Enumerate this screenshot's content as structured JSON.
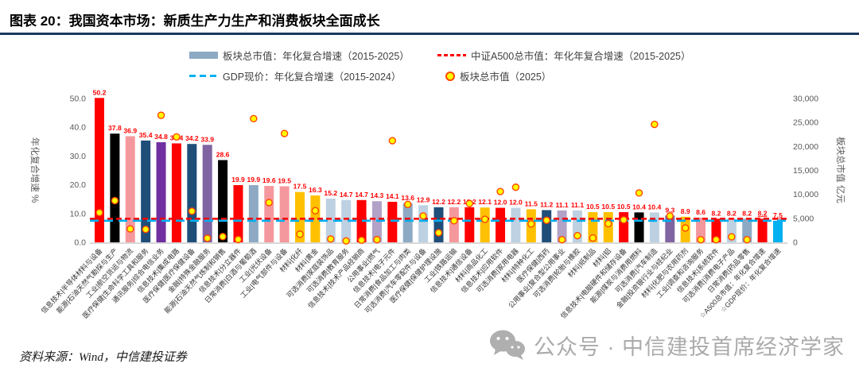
{
  "header": {
    "title": "图表 20：我国资本市场：新质生产力生产和消费板块全面成长"
  },
  "legend": {
    "items": [
      {
        "swatch": "bar",
        "label": "板块总市值：年化复合增速（2015-2025）",
        "color": "#8DA9C4"
      },
      {
        "swatch": "dash-red",
        "label": "中证A500总市值：年化年复合增速（2015-2025）",
        "color": "#FF0000"
      },
      {
        "swatch": "dash-blue",
        "label": "GDP现价：年化复合增速（2015-2024）",
        "color": "#00B0F0"
      },
      {
        "swatch": "dot",
        "label": "板块总市值（2025）",
        "color": "#FFFF00",
        "border": "#FF4500"
      }
    ]
  },
  "chart_data": {
    "type": "bar",
    "title": "",
    "ylabel_left": "年化复合增速 %",
    "ylabel_right": "板块总市值 亿元",
    "ylim_left": [
      0,
      50
    ],
    "ylim_right": [
      0,
      30000
    ],
    "yticks_left": [
      "0.0",
      "10.0",
      "20.0",
      "30.0",
      "40.0",
      "50.0"
    ],
    "yticks_right": [
      "0",
      "5,000",
      "10,000",
      "15,000",
      "20,000",
      "25,000",
      "30,000"
    ],
    "grid": false,
    "legend_position": "top",
    "value_label_color": "#FF0000",
    "scatter_name": "板块总市值（2025）",
    "reference_lines": [
      {
        "name": "中证A500总市值：年化年复合增速（2015-2025）",
        "value": 8.2,
        "color": "#FF0000",
        "dash": "7 4"
      },
      {
        "name": "GDP现价：年化复合增速（2015-2024）",
        "value": 7.5,
        "color": "#00B0F0",
        "dash": "11 7"
      }
    ],
    "series": [
      {
        "label": "信息技术|半导体材料与设备",
        "cagr": 50.2,
        "color": "#FF0000",
        "mcap": 6200
      },
      {
        "label": "能源|石油天然气勘探与生产",
        "cagr": 37.8,
        "color": "#000000",
        "mcap": 8700
      },
      {
        "label": "工业|航空货运与物流",
        "cagr": 36.9,
        "color": "#F5989D",
        "mcap": 2800
      },
      {
        "label": "医疗保健|生命科学工具和服务",
        "cagr": 35.4,
        "color": "#1F4E79",
        "mcap": 2700
      },
      {
        "label": "通讯服务|综合电信业务",
        "cagr": 34.8,
        "color": "#7030A0",
        "mcap": 26500
      },
      {
        "label": "信息技术|集成电路",
        "cagr": 34.4,
        "color": "#FF0000",
        "mcap": 22000
      },
      {
        "label": "医疗保健|医疗保健设备",
        "cagr": 34.2,
        "color": "#1F4E79",
        "mcap": 6500
      },
      {
        "label": "金融|特殊金融服务",
        "cagr": 33.9,
        "color": "#8064A2",
        "mcap": 850
      },
      {
        "label": "能源|石油天然气炼制和销售",
        "cagr": 28.6,
        "color": "#000000",
        "mcap": 1200
      },
      {
        "label": "信息技术|分立器件",
        "cagr": 19.9,
        "color": "#FF0000",
        "mcap": 600
      },
      {
        "label": "日常消费|白酒与葡萄酒",
        "cagr": 19.9,
        "color": "#8DA9C4",
        "mcap": 25800
      },
      {
        "label": "工业|光伏设备",
        "cagr": 19.6,
        "color": "#F5989D",
        "mcap": 8300
      },
      {
        "label": "工业|电气部件与设备",
        "cagr": 19.5,
        "color": "#F5989D",
        "mcap": 22700
      },
      {
        "label": "材料|化纤",
        "cagr": 17.5,
        "color": "#FFC000",
        "mcap": 1700
      },
      {
        "label": "材料|黄金",
        "cagr": 16.3,
        "color": "#FFC000",
        "mcap": 6600
      },
      {
        "label": "可选消费|家庭装饰品",
        "cagr": 15.2,
        "color": "#BDD1E2",
        "mcap": 700
      },
      {
        "label": "可选消费|教育服务",
        "cagr": 14.7,
        "color": "#BDD1E2",
        "mcap": 300
      },
      {
        "label": "信息技术|技术产品经销商",
        "cagr": 14.7,
        "color": "#FF0000",
        "mcap": 450
      },
      {
        "label": "公用事业|燃气",
        "cagr": 14.3,
        "color": "#B3A2C7",
        "mcap": 560
      },
      {
        "label": "信息技术|电子元件",
        "cagr": 14.1,
        "color": "#FF0000",
        "mcap": 21200
      },
      {
        "label": "日常消费|食品加工与肉类",
        "cagr": 13.6,
        "color": "#8DA9C4",
        "mcap": 7900
      },
      {
        "label": "可选消费|汽车零配件与设备",
        "cagr": 12.9,
        "color": "#BDD1E2",
        "mcap": 5500
      },
      {
        "label": "医疗保健|保健护理设施",
        "cagr": 12.2,
        "color": "#1F4E79",
        "mcap": 2000
      },
      {
        "label": "工业|铁路运输",
        "cagr": 12.2,
        "color": "#F5989D",
        "mcap": 4500
      },
      {
        "label": "信息技术|通信设备",
        "cagr": 12.2,
        "color": "#FF0000",
        "mcap": 8100
      },
      {
        "label": "材料|商品化工",
        "cagr": 12.1,
        "color": "#FFC000",
        "mcap": 4800
      },
      {
        "label": "信息技术|应用软件",
        "cagr": 12.0,
        "color": "#FF0000",
        "mcap": 10600
      },
      {
        "label": "可选消费|家用电器",
        "cagr": 12.0,
        "color": "#BDD1E2",
        "mcap": 11500
      },
      {
        "label": "材料|特种化工",
        "cagr": 11.5,
        "color": "#FFC000",
        "mcap": 3850
      },
      {
        "label": "医疗保健|西药",
        "cagr": 11.2,
        "color": "#1F4E79",
        "mcap": 4600
      },
      {
        "label": "公用事业|复合型公用事业",
        "cagr": 11.1,
        "color": "#B3A2C7",
        "mcap": 550
      },
      {
        "label": "可选消费|轮胎与橡胶",
        "cagr": 11.1,
        "color": "#BDD1E2",
        "mcap": 1400
      },
      {
        "label": "材料|纸制品",
        "cagr": 10.5,
        "color": "#FFC000",
        "mcap": 900
      },
      {
        "label": "材料|铝",
        "cagr": 10.5,
        "color": "#FFC000",
        "mcap": 3900
      },
      {
        "label": "信息技术|电脑硬件和储存设备",
        "cagr": 10.5,
        "color": "#FF0000",
        "mcap": 4700
      },
      {
        "label": "能源|煤炭与消费用燃料",
        "cagr": 10.4,
        "color": "#000000",
        "mcap": 10300
      },
      {
        "label": "可选消费|汽车制造",
        "cagr": 10.4,
        "color": "#BDD1E2",
        "mcap": 24600
      },
      {
        "label": "金融|投资银行业与经纪业",
        "cagr": 9.3,
        "color": "#8064A2",
        "mcap": 5500
      },
      {
        "label": "材料|化肥与农用药剂",
        "cagr": 8.9,
        "color": "#FFC000",
        "mcap": 3000
      },
      {
        "label": "工业|调查和咨询服务",
        "cagr": 8.6,
        "color": "#F5989D",
        "mcap": 550
      },
      {
        "label": "信息技术|系统软件",
        "cagr": 8.2,
        "color": "#FF0000",
        "mcap": 550
      },
      {
        "label": "可选消费|消费电子产品",
        "cagr": 8.2,
        "color": "#BDD1E2",
        "mcap": 1150
      },
      {
        "label": "日常消费|药品零售",
        "cagr": 8.2,
        "color": "#8DA9C4",
        "mcap": 550
      },
      {
        "label": "☆A500总市值：年化复合增速",
        "cagr": 8.2,
        "color": "#FF0000",
        "mcap": null,
        "underline": true
      },
      {
        "label": "☆GDP现价：年化复合增速",
        "cagr": 7.5,
        "color": "#00B0F0",
        "mcap": null,
        "underline": true
      }
    ]
  },
  "footer": {
    "source": "资料来源：Wind，中信建投证券"
  },
  "watermark": {
    "icon": "wechat-icon",
    "text": "公众号 · 中信建投首席经济学家"
  }
}
